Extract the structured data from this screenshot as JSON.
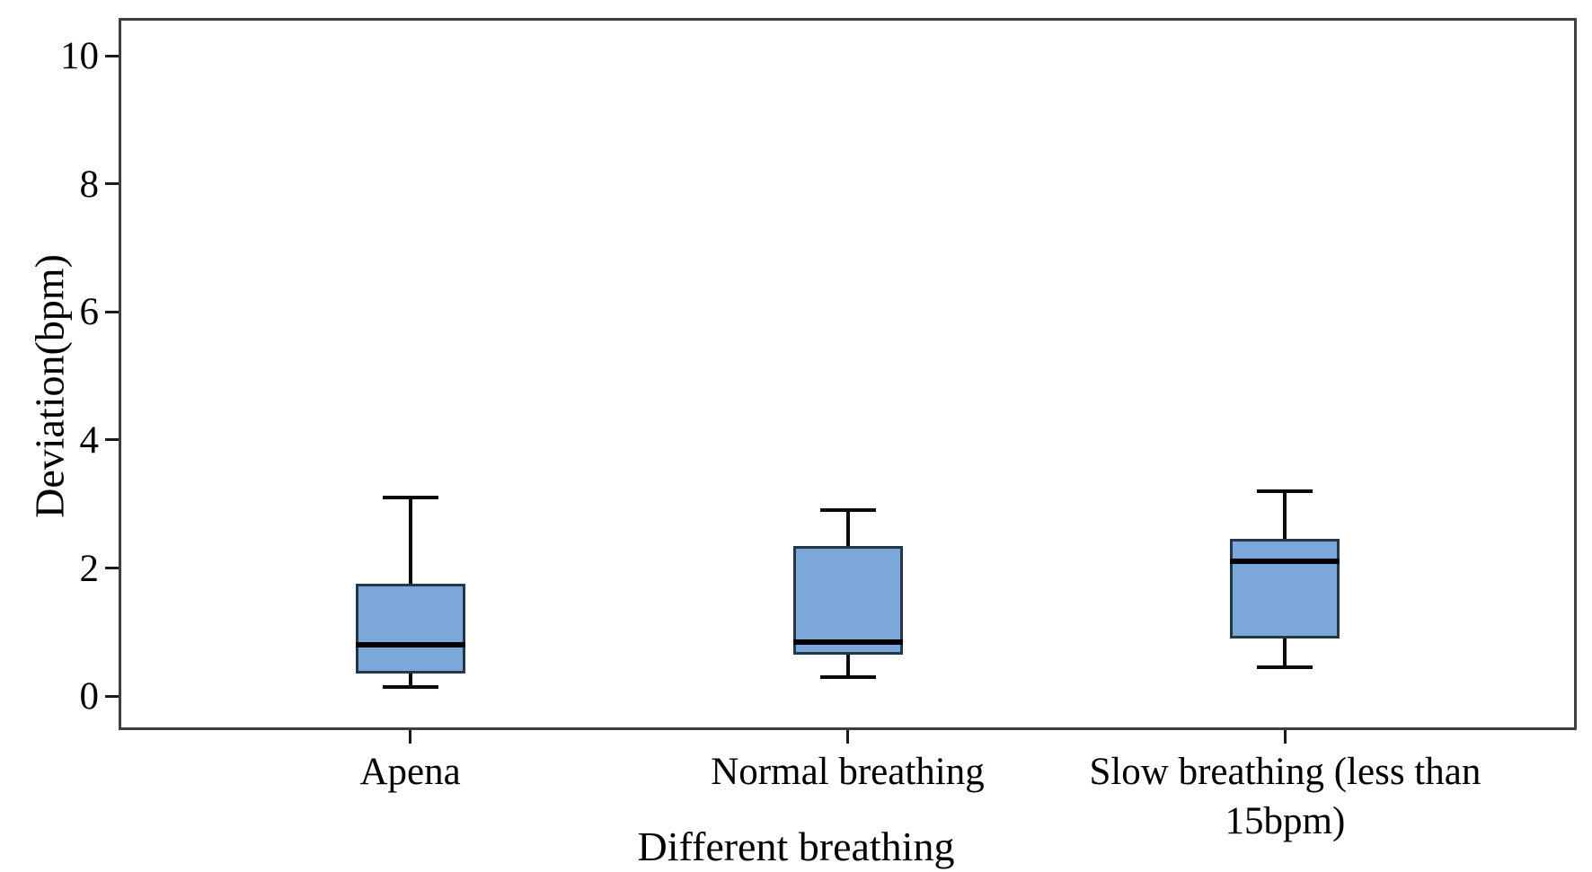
{
  "chart_data": {
    "type": "boxplot",
    "title": "",
    "xlabel": "Different breathing",
    "ylabel": "Deviation(bpm)",
    "categories": [
      "Apena",
      "Normal breathing",
      "Slow breathing (less than 15bpm)"
    ],
    "y_ticks": [
      0,
      2,
      4,
      6,
      8,
      10
    ],
    "ylim": [
      -0.53,
      10.59
    ],
    "grid": false,
    "legend": "none",
    "series": [
      {
        "category": "Apena",
        "whisker_low": 0.15,
        "q1": 0.35,
        "median": 0.8,
        "q3": 1.75,
        "whisker_high": 3.1
      },
      {
        "category": "Normal breathing",
        "whisker_low": 0.3,
        "q1": 0.65,
        "median": 0.85,
        "q3": 2.35,
        "whisker_high": 2.9
      },
      {
        "category": "Slow breathing (less than 15bpm)",
        "whisker_low": 0.45,
        "q1": 0.9,
        "median": 2.1,
        "q3": 2.45,
        "whisker_high": 3.2
      }
    ],
    "colors": {
      "box_fill": "#7BA7D9",
      "box_border": "#233748",
      "median": "#000000",
      "whisker": "#0a0a0a",
      "frame": "#3f3f3f"
    }
  }
}
